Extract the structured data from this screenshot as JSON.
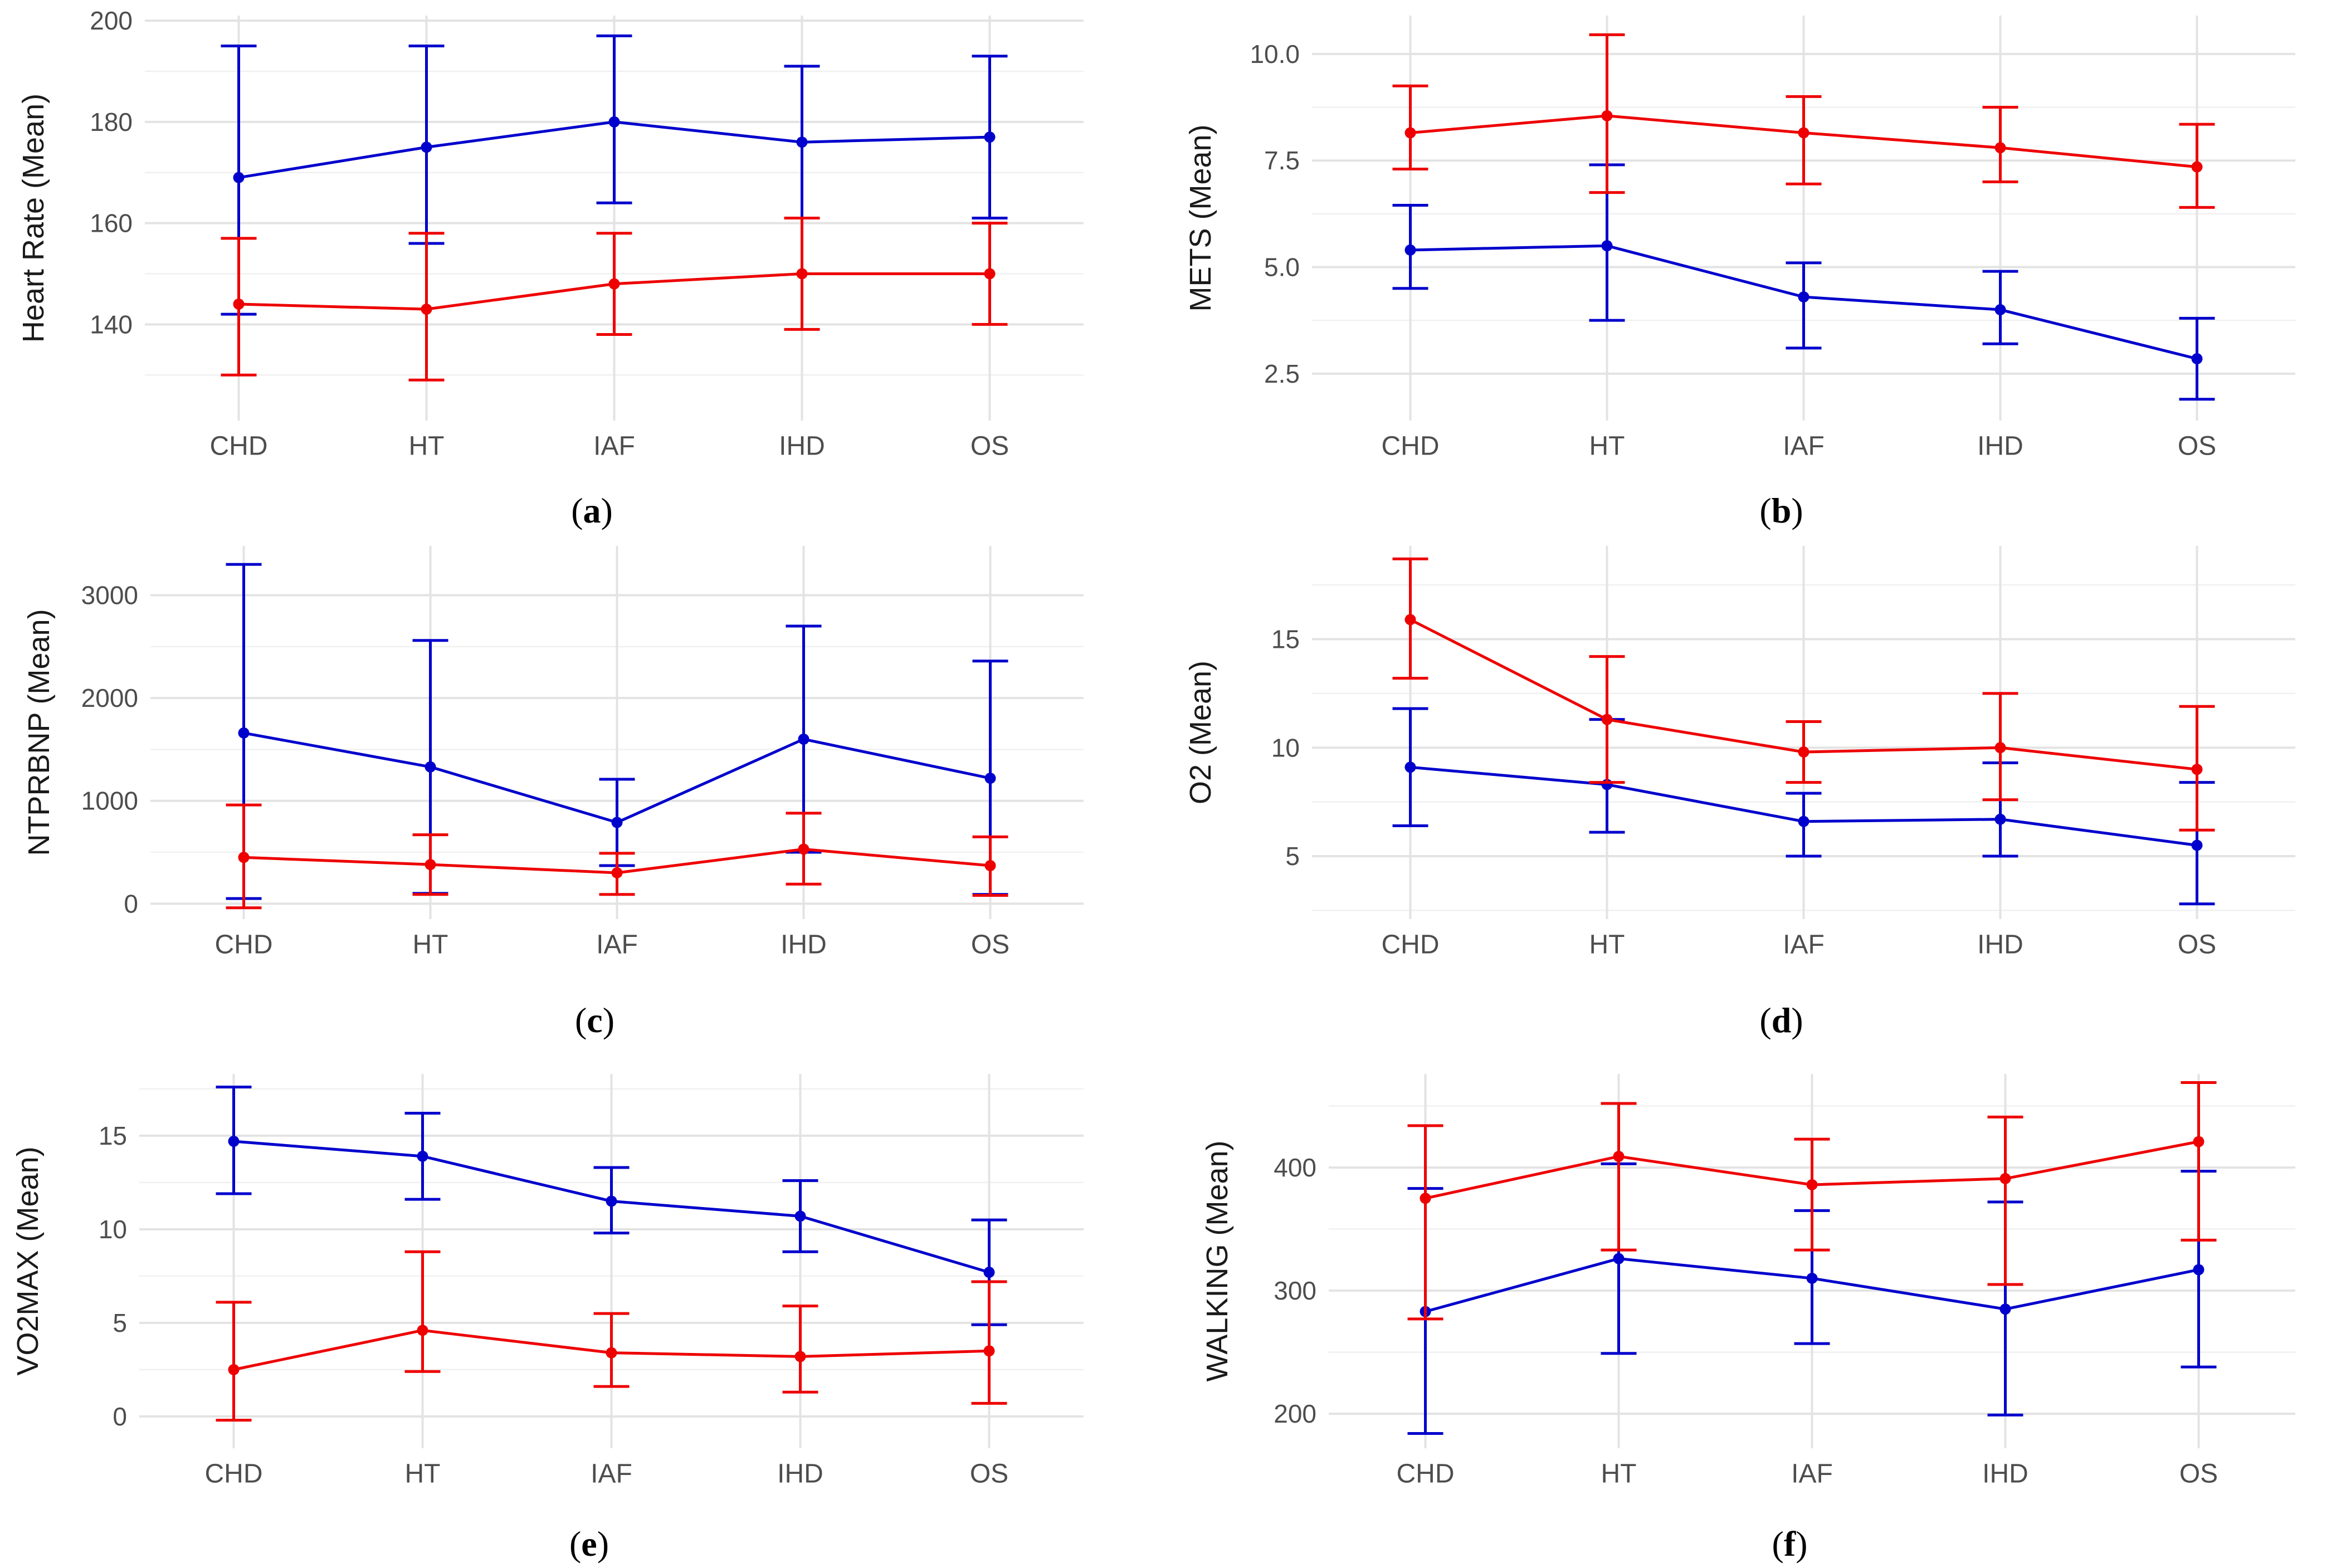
{
  "series_colors": {
    "blue": "#0000cc",
    "red": "#ee0000"
  },
  "chart_data": [
    {
      "id": "a",
      "type": "line",
      "caption": "a",
      "ylabel": "Heart Rate (Mean)",
      "categories": [
        "CHD",
        "HT",
        "IAF",
        "IHD",
        "OS"
      ],
      "ylim": [
        121,
        201
      ],
      "yticks": [
        140,
        160,
        180,
        200
      ],
      "series": [
        {
          "name": "blue",
          "color": "#0000cc",
          "values": [
            169,
            175,
            180,
            176,
            177
          ],
          "err_low": [
            142,
            156,
            164,
            161,
            161
          ],
          "err_high": [
            195,
            195,
            197,
            191,
            193
          ]
        },
        {
          "name": "red",
          "color": "#ee0000",
          "values": [
            144,
            143,
            148,
            150,
            150
          ],
          "err_low": [
            130,
            129,
            138,
            139,
            140
          ],
          "err_high": [
            157,
            158,
            158,
            161,
            160
          ]
        }
      ]
    },
    {
      "id": "b",
      "type": "line",
      "caption": "b",
      "ylabel": "METS (Mean)",
      "categories": [
        "CHD",
        "HT",
        "IAF",
        "IHD",
        "OS"
      ],
      "ylim": [
        1.4,
        10.9
      ],
      "yticks": [
        2.5,
        5.0,
        7.5,
        10.0
      ],
      "ytick_labels": [
        "2.5",
        "5.0",
        "7.5",
        "10.0"
      ],
      "series": [
        {
          "name": "blue",
          "color": "#0000cc",
          "values": [
            5.4,
            5.5,
            4.3,
            4.0,
            2.85
          ],
          "err_low": [
            4.5,
            3.75,
            3.1,
            3.2,
            1.9
          ],
          "err_high": [
            6.45,
            7.4,
            5.1,
            4.9,
            3.8
          ]
        },
        {
          "name": "red",
          "color": "#ee0000",
          "values": [
            8.15,
            8.55,
            8.15,
            7.8,
            7.35
          ],
          "err_low": [
            7.3,
            6.75,
            6.95,
            7.0,
            6.4
          ],
          "err_high": [
            9.25,
            10.45,
            9.0,
            8.75,
            8.35
          ]
        }
      ]
    },
    {
      "id": "c",
      "type": "line",
      "caption": "c",
      "ylabel": "NTPRBNP (Mean)",
      "categories": [
        "CHD",
        "HT",
        "IAF",
        "IHD",
        "OS"
      ],
      "ylim": [
        -150,
        3480
      ],
      "yticks": [
        0,
        1000,
        2000,
        3000
      ],
      "series": [
        {
          "name": "blue",
          "color": "#0000cc",
          "values": [
            1660,
            1330,
            790,
            1600,
            1220
          ],
          "err_low": [
            50,
            100,
            370,
            500,
            90
          ],
          "err_high": [
            3300,
            2560,
            1210,
            2700,
            2360
          ]
        },
        {
          "name": "red",
          "color": "#ee0000",
          "values": [
            450,
            380,
            300,
            530,
            370
          ],
          "err_low": [
            -40,
            90,
            90,
            190,
            80
          ],
          "err_high": [
            960,
            670,
            490,
            880,
            650
          ]
        }
      ]
    },
    {
      "id": "d",
      "type": "line",
      "caption": "d",
      "ylabel": "O2 (Mean)",
      "categories": [
        "CHD",
        "HT",
        "IAF",
        "IHD",
        "OS"
      ],
      "ylim": [
        2.1,
        19.3
      ],
      "yticks": [
        5,
        10,
        15
      ],
      "series": [
        {
          "name": "blue",
          "color": "#0000cc",
          "values": [
            9.1,
            8.3,
            6.6,
            6.7,
            5.5
          ],
          "err_low": [
            6.4,
            6.1,
            5.0,
            5.0,
            2.8
          ],
          "err_high": [
            11.8,
            11.3,
            7.9,
            9.3,
            8.4
          ]
        },
        {
          "name": "red",
          "color": "#ee0000",
          "values": [
            15.9,
            11.3,
            9.8,
            10.0,
            9.0
          ],
          "err_low": [
            13.2,
            8.4,
            8.4,
            7.6,
            6.2
          ],
          "err_high": [
            18.7,
            14.2,
            11.2,
            12.5,
            11.9
          ]
        }
      ]
    },
    {
      "id": "e",
      "type": "line",
      "caption": "e",
      "ylabel": "VO2MAX (Mean)",
      "categories": [
        "CHD",
        "HT",
        "IAF",
        "IHD",
        "OS"
      ],
      "ylim": [
        -1.7,
        18.3
      ],
      "yticks": [
        0,
        5,
        10,
        15
      ],
      "series": [
        {
          "name": "blue",
          "color": "#0000cc",
          "values": [
            14.7,
            13.9,
            11.5,
            10.7,
            7.7
          ],
          "err_low": [
            11.9,
            11.6,
            9.8,
            8.8,
            4.9
          ],
          "err_high": [
            17.6,
            16.2,
            13.3,
            12.6,
            10.5
          ]
        },
        {
          "name": "red",
          "color": "#ee0000",
          "values": [
            2.5,
            4.6,
            3.4,
            3.2,
            3.5
          ],
          "err_low": [
            -0.2,
            2.4,
            1.6,
            1.3,
            0.7
          ],
          "err_high": [
            6.1,
            8.8,
            5.5,
            5.9,
            7.2
          ]
        }
      ]
    },
    {
      "id": "f",
      "type": "line",
      "caption": "f",
      "ylabel": "WALKING (Mean)",
      "categories": [
        "CHD",
        "HT",
        "IAF",
        "IHD",
        "OS"
      ],
      "ylim": [
        172,
        476
      ],
      "yticks": [
        200,
        300,
        400
      ],
      "series": [
        {
          "name": "blue",
          "color": "#0000cc",
          "values": [
            283,
            326,
            310,
            285,
            317
          ],
          "err_low": [
            184,
            249,
            257,
            199,
            238
          ],
          "err_high": [
            383,
            403,
            365,
            372,
            397
          ]
        },
        {
          "name": "red",
          "color": "#ee0000",
          "values": [
            375,
            409,
            386,
            391,
            421
          ],
          "err_low": [
            277,
            333,
            333,
            305,
            341
          ],
          "err_high": [
            434,
            452,
            423,
            441,
            469
          ]
        }
      ]
    }
  ]
}
